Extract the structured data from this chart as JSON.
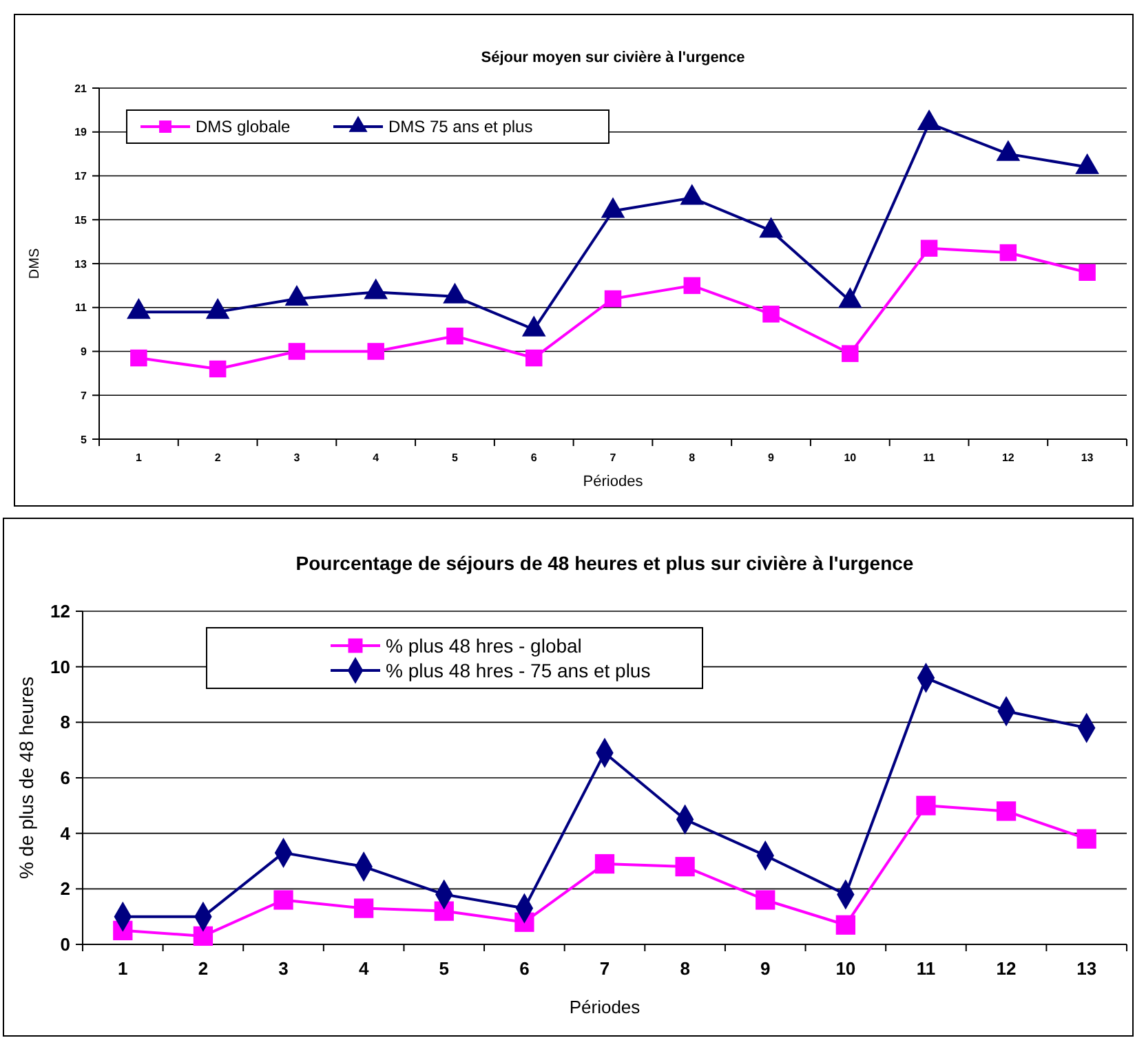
{
  "chart_data": [
    {
      "type": "line",
      "title": "Séjour moyen sur civière à l'urgence",
      "xlabel": "Périodes",
      "ylabel": "DMS",
      "categories": [
        "1",
        "2",
        "3",
        "4",
        "5",
        "6",
        "7",
        "8",
        "9",
        "10",
        "11",
        "12",
        "13"
      ],
      "ylim": [
        5,
        21
      ],
      "yticks": [
        5,
        7,
        9,
        11,
        13,
        15,
        17,
        19,
        21
      ],
      "grid": "y",
      "legend": "top left",
      "series": [
        {
          "name": "DMS globale",
          "color": "#ff00ff",
          "marker": "square",
          "values": [
            8.7,
            8.2,
            9.0,
            9.0,
            9.7,
            8.7,
            11.4,
            12.0,
            10.7,
            8.9,
            13.7,
            13.5,
            12.6
          ]
        },
        {
          "name": "DMS 75 ans et plus",
          "color": "#000080",
          "marker": "triangle",
          "values": [
            10.8,
            10.8,
            11.4,
            11.7,
            11.5,
            10.0,
            15.4,
            16.0,
            14.5,
            11.3,
            19.4,
            18.0,
            17.4
          ]
        }
      ]
    },
    {
      "type": "line",
      "title": "Pourcentage de séjours de 48 heures et plus sur civière à l'urgence",
      "xlabel": "Périodes",
      "ylabel": "% de plus de 48 heures",
      "categories": [
        "1",
        "2",
        "3",
        "4",
        "5",
        "6",
        "7",
        "8",
        "9",
        "10",
        "11",
        "12",
        "13"
      ],
      "ylim": [
        0,
        12
      ],
      "yticks": [
        0,
        2,
        4,
        6,
        8,
        10,
        12
      ],
      "grid": "y",
      "legend": "top left",
      "series": [
        {
          "name": "% plus 48 hres - global",
          "color": "#ff00ff",
          "marker": "square",
          "values": [
            0.5,
            0.3,
            1.6,
            1.3,
            1.2,
            0.8,
            2.9,
            2.8,
            1.6,
            0.7,
            5.0,
            4.8,
            3.8
          ]
        },
        {
          "name": "% plus 48 hres - 75 ans et plus",
          "color": "#000080",
          "marker": "diamond",
          "values": [
            1.0,
            1.0,
            3.3,
            2.8,
            1.8,
            1.3,
            6.9,
            4.5,
            3.2,
            1.8,
            9.6,
            8.4,
            7.8
          ]
        }
      ]
    }
  ]
}
